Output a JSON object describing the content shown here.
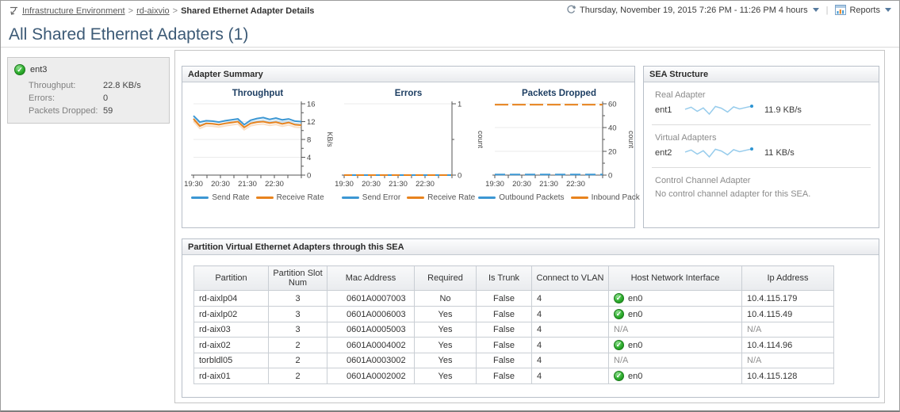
{
  "header": {
    "breadcrumb": [
      "Infrastructure Environment",
      "rd-aixvio",
      "Shared Ethernet Adapter Details"
    ],
    "time_range": "Thursday, November 19, 2015 7:26 PM - 11:26 PM 4 hours",
    "reports_label": "Reports"
  },
  "page_title": "All Shared Ethernet Adapters (1)",
  "selected_adapter": {
    "name": "ent3",
    "status": "ok",
    "metrics": [
      {
        "label": "Throughput:",
        "value": "22.8 KB/s"
      },
      {
        "label": "Errors:",
        "value": "0"
      },
      {
        "label": "Packets Dropped:",
        "value": "59"
      }
    ]
  },
  "adapter_summary": {
    "title": "Adapter Summary"
  },
  "chart_data": [
    {
      "type": "line",
      "title": "Throughput",
      "ylabel": "KB/s",
      "ylim": [
        0,
        16
      ],
      "yticks": [
        0,
        4,
        8,
        12,
        16
      ],
      "xticks": [
        "19:30",
        "20:30",
        "21:30",
        "22:30"
      ],
      "grid": true,
      "legend_position": "bottom",
      "series": [
        {
          "name": "Send Rate",
          "color": "#3c97d3",
          "shadow": true,
          "values": [
            13.3,
            11.9,
            12.2,
            12.1,
            11.9,
            12.2,
            12.4,
            12.6,
            11.3,
            12.3,
            12.7,
            12.9,
            12.5,
            12.8,
            12.4,
            12.6,
            12.1,
            12.0
          ]
        },
        {
          "name": "Receive Rate",
          "color": "#e8831e",
          "shadow": true,
          "values": [
            12.6,
            11.0,
            11.6,
            11.5,
            11.3,
            11.6,
            11.8,
            12.0,
            10.7,
            11.6,
            11.9,
            12.0,
            11.7,
            11.9,
            11.5,
            11.8,
            11.3,
            11.2
          ]
        }
      ]
    },
    {
      "type": "line",
      "title": "Errors",
      "ylabel": "count",
      "ylim": [
        0,
        1
      ],
      "yticks": [
        0,
        1
      ],
      "xticks": [
        "19:30",
        "20:30",
        "21:30",
        "22:30"
      ],
      "grid": true,
      "legend_position": "bottom",
      "series": [
        {
          "name": "Send Error",
          "color": "#3c97d3",
          "values": [
            0,
            0,
            0,
            0,
            0,
            0,
            0,
            0,
            0,
            0,
            0,
            0,
            0,
            0,
            0,
            0,
            0,
            0
          ]
        },
        {
          "name": "Receive Rate",
          "color": "#e8831e",
          "dash": "10 5",
          "values": [
            0,
            0,
            0,
            0,
            0,
            0,
            0,
            0,
            0,
            0,
            0,
            0,
            0,
            0,
            0,
            0,
            0,
            0
          ]
        }
      ]
    },
    {
      "type": "line",
      "title": "Packets Dropped",
      "ylabel": "count",
      "ylim": [
        0,
        60
      ],
      "yticks": [
        0,
        20,
        40,
        60
      ],
      "xticks": [
        "19:30",
        "20:30",
        "21:30",
        "22:30"
      ],
      "grid": true,
      "legend_position": "bottom",
      "series": [
        {
          "name": "Outbound Packets",
          "color": "#3c97d3",
          "dash": "13 6",
          "values": [
            0.5,
            0.5,
            0.5,
            0.5,
            0.5,
            0.5,
            0.5,
            0.5,
            0.5,
            0.5,
            0.5,
            0.5,
            0.5,
            0.5,
            0.5,
            0.5,
            0.5,
            0.5
          ]
        },
        {
          "name": "Inbound Pack",
          "color": "#e8831e",
          "dash": "17 5",
          "values": [
            59.3,
            59.3,
            59.3,
            59.3,
            59.3,
            59.3,
            59.3,
            59.3,
            59.3,
            59.3,
            59.3,
            59.3,
            59.3,
            59.3,
            59.3,
            59.3,
            59.3,
            59.3
          ]
        }
      ]
    }
  ],
  "sea_structure": {
    "title": "SEA Structure",
    "sections": [
      {
        "label": "Real Adapter",
        "adapter": "ent1",
        "value": "11.9 KB/s",
        "spark": [
          6,
          6.6,
          5.4,
          6.4,
          4.6,
          6.8,
          6.3,
          5.2,
          6.7,
          6.1,
          6.5,
          6.9
        ]
      },
      {
        "label": "Virtual Adapters",
        "adapter": "ent2",
        "value": "11 KB/s",
        "spark": [
          5.8,
          6.4,
          5.2,
          6.2,
          4.4,
          6.6,
          6.1,
          5.0,
          6.5,
          5.9,
          6.3,
          6.7
        ]
      },
      {
        "label": "Control Channel Adapter",
        "message": "No control channel adapter for this SEA."
      }
    ]
  },
  "partition_table": {
    "title": "Partition Virtual Ethernet Adapters through this SEA",
    "columns": [
      "Partition",
      "Partition Slot Num",
      "Mac Address",
      "Required",
      "Is Trunk",
      "Connect to VLAN",
      "Host Network Interface",
      "Ip Address"
    ],
    "rows": [
      {
        "partition": "rd-aixlp04",
        "slot": "3",
        "mac": "0601A0007003",
        "required": "No",
        "is_trunk": "False",
        "vlan": "4",
        "host_if": "en0",
        "host_if_status": "ok",
        "ip": "10.4.115.179"
      },
      {
        "partition": "rd-aixlp02",
        "slot": "3",
        "mac": "0601A0006003",
        "required": "Yes",
        "is_trunk": "False",
        "vlan": "4",
        "host_if": "en0",
        "host_if_status": "ok",
        "ip": "10.4.115.49"
      },
      {
        "partition": "rd-aix03",
        "slot": "3",
        "mac": "0601A0005003",
        "required": "Yes",
        "is_trunk": "False",
        "vlan": "4",
        "host_if": "N/A",
        "host_if_status": "na",
        "ip": "N/A"
      },
      {
        "partition": "rd-aix02",
        "slot": "2",
        "mac": "0601A0004002",
        "required": "Yes",
        "is_trunk": "False",
        "vlan": "4",
        "host_if": "en0",
        "host_if_status": "ok",
        "ip": "10.4.114.96"
      },
      {
        "partition": "torbldl05",
        "slot": "2",
        "mac": "0601A0003002",
        "required": "Yes",
        "is_trunk": "False",
        "vlan": "4",
        "host_if": "N/A",
        "host_if_status": "na",
        "ip": "N/A"
      },
      {
        "partition": "rd-aix01",
        "slot": "2",
        "mac": "0601A0002002",
        "required": "Yes",
        "is_trunk": "False",
        "vlan": "4",
        "host_if": "en0",
        "host_if_status": "ok",
        "ip": "10.4.115.128"
      }
    ]
  },
  "colors": {
    "send_series": "#3c97d3",
    "receive_series": "#e8831e",
    "status_ok": "#2fae2f",
    "sparkline": "#8cc7ea",
    "title_text": "#3c5a76"
  }
}
